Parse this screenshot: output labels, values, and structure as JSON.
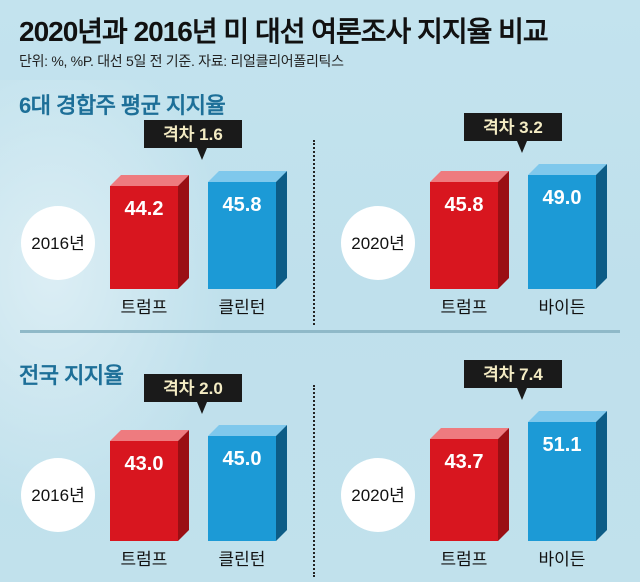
{
  "title": "2020년과 2016년 미 대선 여론조사 지지율 비교",
  "subtitle": "단위: %, %P. 대선 5일 전 기준. 자료: 리얼클리어폴리틱스",
  "colors": {
    "trump_front": "#d8161f",
    "trump_side": "#9a0f14",
    "trump_top": "#ee7b7f",
    "dem_front": "#1c9ad6",
    "dem_side": "#0c5c86",
    "dem_top": "#7fc8ec",
    "section_title": "#1d6f98",
    "gap_box": "#1a1a1a"
  },
  "chart_data": [
    {
      "type": "bar",
      "section": "6대 경합주 평균 지지율",
      "year": "2016년",
      "categories": [
        "트럼프",
        "클린턴"
      ],
      "values": [
        44.2,
        45.8
      ],
      "value_labels": [
        "44.2",
        "45.8"
      ],
      "gap_label": "격차 1.6",
      "gap": 1.6,
      "series_colors": [
        "red",
        "blue"
      ]
    },
    {
      "type": "bar",
      "section": "6대 경합주 평균 지지율",
      "year": "2020년",
      "categories": [
        "트럼프",
        "바이든"
      ],
      "values": [
        45.8,
        49.0
      ],
      "value_labels": [
        "45.8",
        "49.0"
      ],
      "gap_label": "격차 3.2",
      "gap": 3.2,
      "series_colors": [
        "red",
        "blue"
      ]
    },
    {
      "type": "bar",
      "section": "전국 지지율",
      "year": "2016년",
      "categories": [
        "트럼프",
        "클린턴"
      ],
      "values": [
        43.0,
        45.0
      ],
      "value_labels": [
        "43.0",
        "45.0"
      ],
      "gap_label": "격차 2.0",
      "gap": 2.0,
      "series_colors": [
        "red",
        "blue"
      ]
    },
    {
      "type": "bar",
      "section": "전국 지지율",
      "year": "2020년",
      "categories": [
        "트럼프",
        "바이든"
      ],
      "values": [
        43.7,
        51.1
      ],
      "value_labels": [
        "43.7",
        "51.1"
      ],
      "gap_label": "격차 7.4",
      "gap": 7.4,
      "series_colors": [
        "red",
        "blue"
      ]
    }
  ],
  "sections": [
    {
      "title": "6대 경합주 평균 지지율"
    },
    {
      "title": "전국 지지율"
    }
  ]
}
